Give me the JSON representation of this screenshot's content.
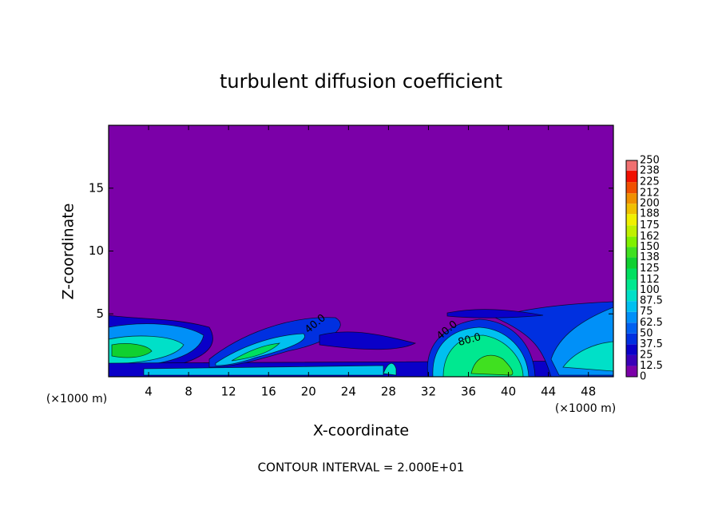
{
  "chart_data": {
    "type": "contour",
    "title": "turbulent diffusion coefficient",
    "x_label": "X-coordinate",
    "y_label": "Z-coordinate",
    "x_unit": "(×1000 m)",
    "footer": "CONTOUR INTERVAL = 2.000E+01",
    "xlim": [
      0,
      50.5
    ],
    "xticks": [
      4,
      8,
      12,
      16,
      20,
      24,
      28,
      32,
      36,
      40,
      44,
      48
    ],
    "ylim": [
      0,
      20
    ],
    "yticks": [
      5,
      10,
      15
    ],
    "colorbar": {
      "levels": [
        0,
        12.5,
        25,
        37.5,
        50,
        62.5,
        75,
        87.5,
        100,
        112,
        125,
        138,
        150,
        162,
        175,
        188,
        200,
        212,
        225,
        238,
        250
      ],
      "colors": [
        "#7b00a8",
        "#3a00b8",
        "#0a00c8",
        "#0030e0",
        "#0060f0",
        "#0090f8",
        "#00c0f0",
        "#00e0c8",
        "#00e890",
        "#00e060",
        "#10d030",
        "#40e020",
        "#80f000",
        "#c0f000",
        "#f0f000",
        "#f0c000",
        "#f09000",
        "#f05000",
        "#f01000",
        "#f07070"
      ]
    },
    "contour_labels": [
      {
        "value": 40,
        "label": "40.0"
      },
      {
        "value": 40,
        "label": "40.0"
      },
      {
        "value": 80,
        "label": "80.0"
      }
    ]
  }
}
